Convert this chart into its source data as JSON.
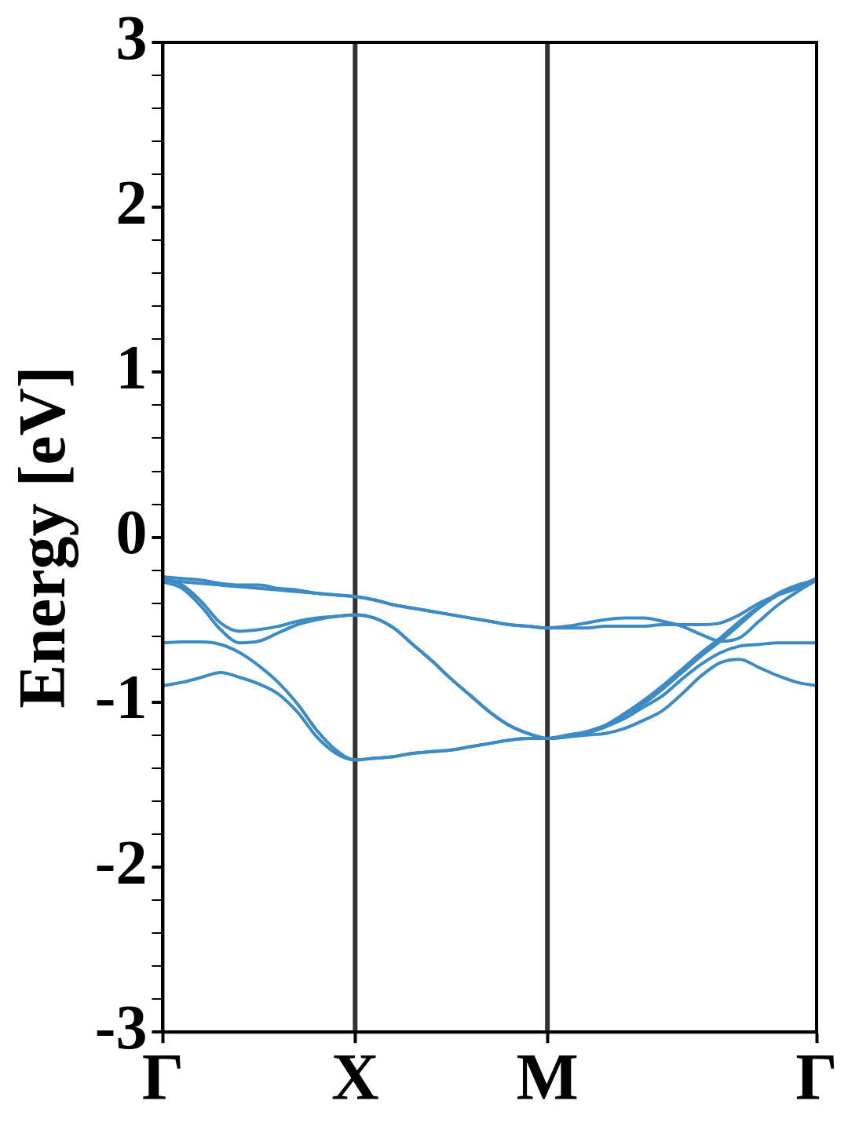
{
  "chart_data": {
    "type": "line",
    "ylabel": "Energy [eV]",
    "categories": [
      "Γ",
      null,
      null,
      null,
      null,
      null,
      null,
      null,
      null,
      null,
      "X",
      null,
      null,
      null,
      null,
      null,
      null,
      null,
      null,
      null,
      "M",
      null,
      null,
      null,
      null,
      null,
      null,
      null,
      null,
      null,
      null,
      null,
      null,
      null,
      "Γ"
    ],
    "ylim": [
      -3,
      3
    ],
    "yticks": [
      -3,
      {
        "value": -2.8,
        "label": null
      },
      {
        "value": -2.6,
        "label": null
      },
      {
        "value": -2.4,
        "label": null
      },
      {
        "value": -2.2,
        "label": null
      },
      {
        "value": -2,
        "label": "-2"
      },
      {
        "value": -1.8,
        "label": null
      },
      {
        "value": -1.6,
        "label": null
      },
      {
        "value": -1.4,
        "label": null
      },
      {
        "value": -1.2,
        "label": null
      },
      {
        "value": -1,
        "label": "-1"
      },
      {
        "value": -0.8,
        "label": null
      },
      {
        "value": -0.6,
        "label": null
      },
      {
        "value": -0.4,
        "label": null
      },
      {
        "value": -0.2,
        "label": null
      },
      0,
      {
        "value": 0.2,
        "label": null
      },
      {
        "value": 0.4,
        "label": null
      },
      {
        "value": 0.6,
        "label": null
      },
      {
        "value": 0.8,
        "label": null
      },
      1,
      {
        "value": 1.2,
        "label": null
      },
      {
        "value": 1.4,
        "label": null
      },
      {
        "value": 1.6,
        "label": null
      },
      {
        "value": 1.8,
        "label": null
      },
      2,
      {
        "value": 2.2,
        "label": null
      },
      {
        "value": 2.4,
        "label": null
      },
      {
        "value": 2.6,
        "label": null
      },
      {
        "value": 2.8,
        "label": null
      },
      3
    ],
    "grid": false,
    "legend": false,
    "marker": "none",
    "line_style": "solid",
    "ref_lines": [
      {
        "axis": "x",
        "value": "X",
        "color": "#333333"
      },
      {
        "axis": "x",
        "value": "M",
        "color": "#333333"
      }
    ],
    "series": [
      {
        "color": "#3d8bc4",
        "values": [
          -0.24,
          -0.25,
          -0.26,
          -0.28,
          -0.29,
          -0.29,
          -0.31,
          -0.32,
          -0.34,
          -0.35,
          -0.36,
          -0.38,
          -0.41,
          -0.43,
          -0.45,
          -0.47,
          -0.49,
          -0.51,
          -0.53,
          -0.54,
          -0.55,
          -0.54,
          -0.52,
          -0.5,
          -0.49,
          -0.49,
          -0.51,
          -0.54,
          -0.59,
          -0.63,
          -0.61,
          -0.51,
          -0.41,
          -0.33,
          -0.26
        ]
      },
      {
        "color": "#3d8bc4",
        "values": [
          -0.26,
          -0.27,
          -0.28,
          -0.29,
          -0.3,
          -0.31,
          -0.32,
          -0.33,
          -0.34,
          -0.35,
          -0.36,
          -0.38,
          -0.41,
          -0.43,
          -0.45,
          -0.47,
          -0.49,
          -0.51,
          -0.53,
          -0.54,
          -0.55,
          -0.55,
          -0.55,
          -0.54,
          -0.54,
          -0.54,
          -0.53,
          -0.53,
          -0.53,
          -0.52,
          -0.47,
          -0.4,
          -0.35,
          -0.31,
          -0.25
        ]
      },
      {
        "color": "#3d8bc4",
        "values": [
          -0.25,
          -0.29,
          -0.39,
          -0.52,
          -0.57,
          -0.56,
          -0.54,
          -0.51,
          -0.49,
          -0.48,
          -0.47,
          -0.49,
          -0.55,
          -0.65,
          -0.75,
          -0.86,
          -0.96,
          -1.06,
          -1.14,
          -1.19,
          -1.22,
          -1.21,
          -1.19,
          -1.15,
          -1.08,
          -1.01,
          -0.92,
          -0.82,
          -0.72,
          -0.63,
          -0.53,
          -0.43,
          -0.35,
          -0.3,
          -0.25
        ]
      },
      {
        "color": "#3d8bc4",
        "values": [
          -0.27,
          -0.31,
          -0.42,
          -0.56,
          -0.64,
          -0.63,
          -0.58,
          -0.53,
          -0.5,
          -0.48,
          -0.47,
          -0.49,
          -0.55,
          -0.65,
          -0.75,
          -0.86,
          -0.96,
          -1.06,
          -1.14,
          -1.19,
          -1.22,
          -1.21,
          -1.18,
          -1.14,
          -1.07,
          -0.99,
          -0.9,
          -0.8,
          -0.7,
          -0.61,
          -0.51,
          -0.42,
          -0.34,
          -0.29,
          -0.26
        ]
      },
      {
        "color": "#3d8bc4",
        "values": [
          -0.64,
          -0.635,
          -0.635,
          -0.65,
          -0.7,
          -0.78,
          -0.88,
          -1.01,
          -1.17,
          -1.29,
          -1.35,
          -1.34,
          -1.33,
          -1.31,
          -1.3,
          -1.29,
          -1.27,
          -1.25,
          -1.23,
          -1.22,
          -1.22,
          -1.2,
          -1.18,
          -1.15,
          -1.1,
          -1.03,
          -0.96,
          -0.86,
          -0.77,
          -0.7,
          -0.66,
          -0.65,
          -0.64,
          -0.64,
          -0.64
        ]
      },
      {
        "color": "#3d8bc4",
        "values": [
          -0.9,
          -0.88,
          -0.85,
          -0.82,
          -0.85,
          -0.89,
          -0.95,
          -1.06,
          -1.21,
          -1.31,
          -1.35,
          -1.34,
          -1.33,
          -1.31,
          -1.3,
          -1.29,
          -1.27,
          -1.25,
          -1.23,
          -1.22,
          -1.22,
          -1.21,
          -1.2,
          -1.19,
          -1.16,
          -1.11,
          -1.05,
          -0.95,
          -0.84,
          -0.76,
          -0.74,
          -0.79,
          -0.84,
          -0.88,
          -0.9
        ]
      }
    ]
  }
}
